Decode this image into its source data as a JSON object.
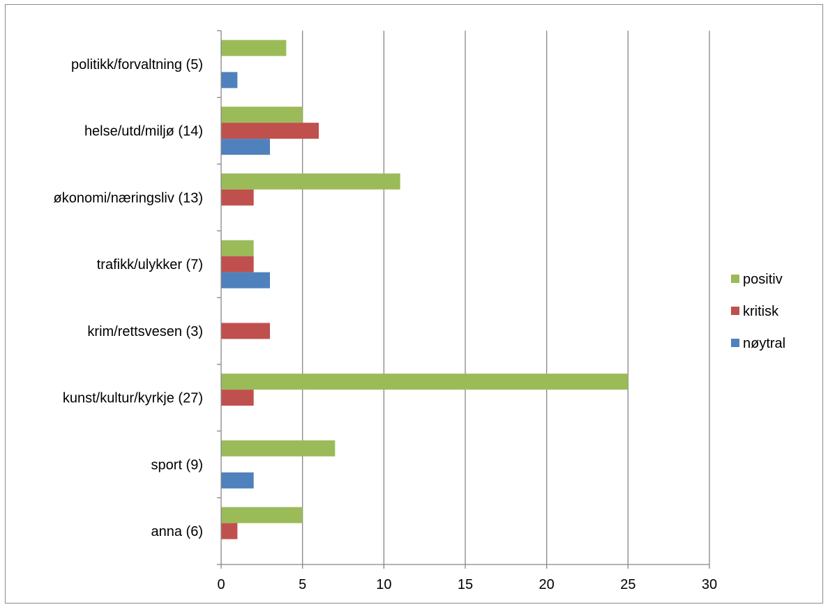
{
  "chart_data": {
    "type": "bar",
    "orientation": "horizontal",
    "categories": [
      "politikk/forvaltning (5)",
      "helse/utd/miljø (14)",
      "økonomi/næringsliv (13)",
      "trafikk/ulykker (7)",
      "krim/rettsvesen (3)",
      "kunst/kultur/kyrkje (27)",
      "sport (9)",
      "anna (6)"
    ],
    "series": [
      {
        "name": "positiv",
        "color": "#9BBB59",
        "values": [
          4,
          5,
          11,
          2,
          0,
          25,
          7,
          5
        ]
      },
      {
        "name": "kritisk",
        "color": "#C0504D",
        "values": [
          0,
          6,
          2,
          2,
          3,
          2,
          0,
          1
        ]
      },
      {
        "name": "nøytral",
        "color": "#4F81BD",
        "values": [
          1,
          3,
          0,
          3,
          0,
          0,
          2,
          0
        ]
      }
    ],
    "xlim": [
      0,
      30
    ],
    "xticks": [
      "0",
      "5",
      "10",
      "15",
      "20",
      "25",
      "30"
    ],
    "grid": "vertical major gridlines",
    "legend_position": "right",
    "title": "",
    "xlabel": "",
    "ylabel": ""
  }
}
